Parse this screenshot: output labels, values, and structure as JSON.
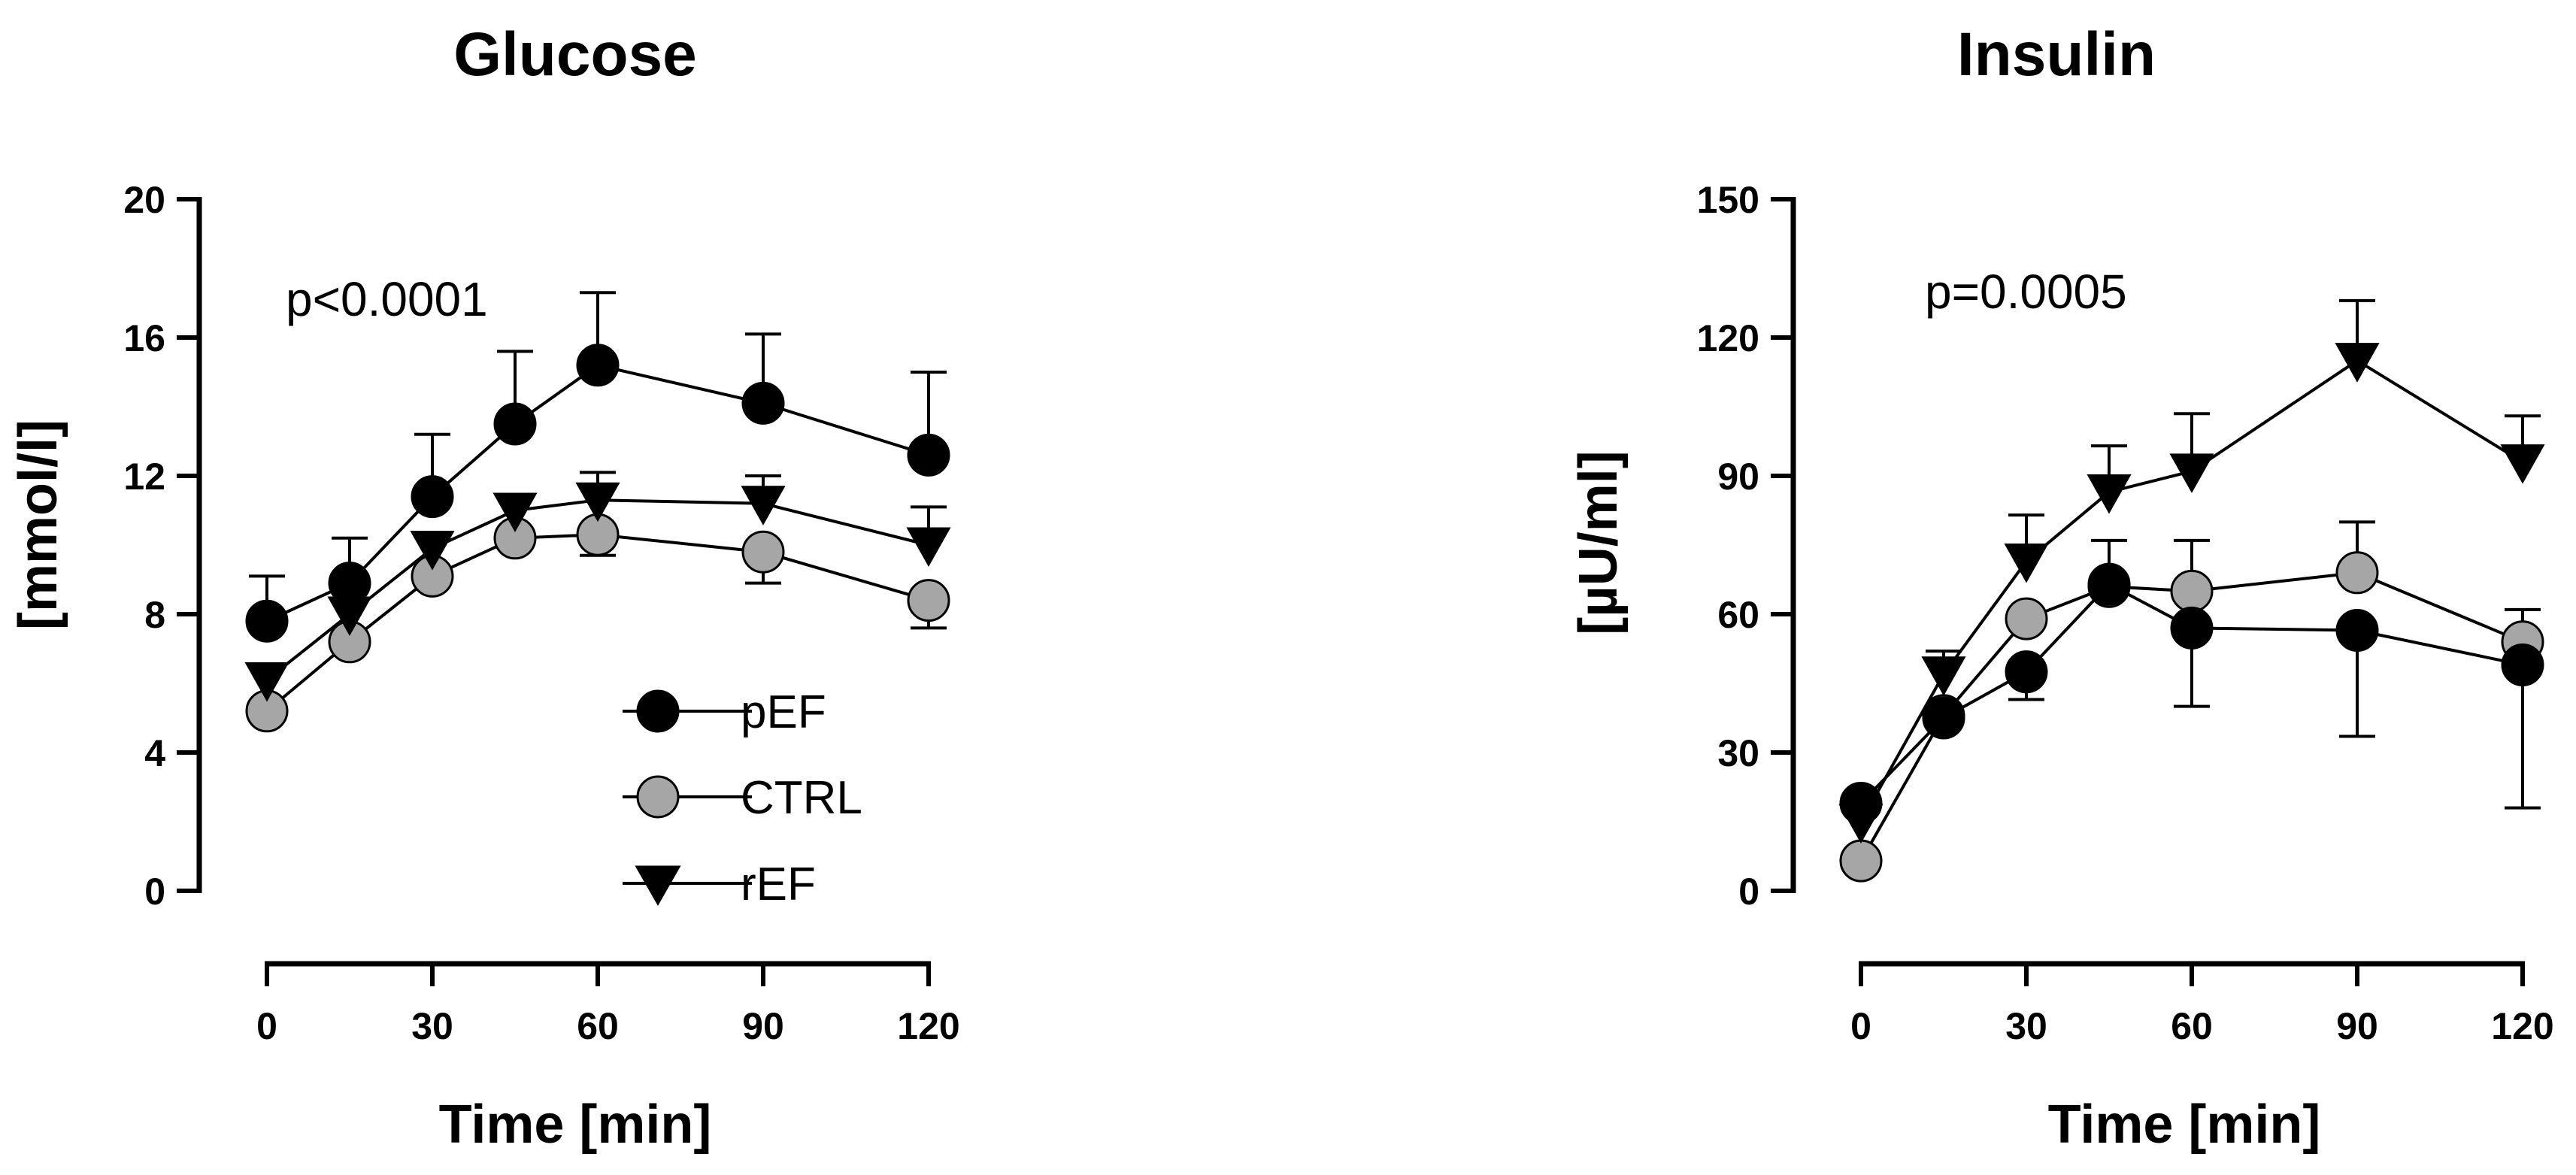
{
  "chart_data": [
    {
      "type": "line",
      "title": "Glucose",
      "xlabel": "Time [min]",
      "ylabel": "[mmol/l]",
      "xticks": [
        0,
        30,
        60,
        90,
        120
      ],
      "yticks": [
        0,
        4,
        8,
        12,
        16,
        20
      ],
      "xlim": [
        0,
        120
      ],
      "ylim": [
        0,
        20
      ],
      "annotation": "p<0.0001",
      "legend": {
        "position": "bottom-right",
        "entries": [
          "pEF",
          "CTRL",
          "rEF"
        ]
      },
      "series": [
        {
          "name": "pEF",
          "marker": "circle",
          "color": "#000000",
          "x": [
            0,
            15,
            30,
            45,
            60,
            90,
            120
          ],
          "y": [
            7.8,
            8.9,
            11.4,
            13.5,
            15.2,
            14.1,
            12.6
          ],
          "err_up": [
            1.3,
            1.3,
            1.8,
            2.1,
            2.1,
            2.0,
            2.4
          ]
        },
        {
          "name": "CTRL",
          "marker": "circle",
          "color": "#a6a6a6",
          "x": [
            0,
            15,
            30,
            45,
            60,
            90,
            120
          ],
          "y": [
            5.2,
            7.2,
            9.1,
            10.2,
            10.3,
            9.8,
            8.4
          ],
          "err_down": [
            0,
            0,
            0,
            0,
            0.6,
            0.9,
            0.8
          ]
        },
        {
          "name": "rEF",
          "marker": "triangle",
          "color": "#000000",
          "x": [
            0,
            15,
            30,
            45,
            60,
            90,
            120
          ],
          "y": [
            6.1,
            8.0,
            9.9,
            11.0,
            11.3,
            11.2,
            10.0
          ],
          "err_up": [
            0,
            0,
            0,
            0,
            0.8,
            0.8,
            1.1
          ]
        }
      ]
    },
    {
      "type": "line",
      "title": "Insulin",
      "xlabel": "Time [min]",
      "ylabel": "[µU/ml]",
      "xticks": [
        0,
        30,
        60,
        90,
        120
      ],
      "yticks": [
        0,
        30,
        60,
        90,
        120,
        150
      ],
      "xlim": [
        0,
        120
      ],
      "ylim": [
        0,
        150
      ],
      "annotation": "p=0.0005",
      "series": [
        {
          "name": "pEF",
          "marker": "circle",
          "color": "#000000",
          "x": [
            0,
            15,
            30,
            45,
            60,
            90,
            120
          ],
          "y": [
            19,
            37.5,
            47.5,
            66.5,
            57,
            56.5,
            49
          ],
          "err_down": [
            0,
            0,
            6,
            0,
            17,
            23,
            31
          ]
        },
        {
          "name": "CTRL",
          "marker": "circle",
          "color": "#a6a6a6",
          "x": [
            0,
            15,
            30,
            45,
            60,
            90,
            120
          ],
          "y": [
            6.5,
            38,
            59,
            66,
            65,
            69,
            54
          ],
          "err_up": [
            0,
            0,
            0,
            10,
            11,
            11,
            7
          ]
        },
        {
          "name": "rEF",
          "marker": "triangle",
          "color": "#000000",
          "x": [
            0,
            15,
            30,
            45,
            60,
            90,
            120
          ],
          "y": [
            15,
            47,
            71.5,
            86.5,
            91,
            115,
            93
          ],
          "err_up": [
            0,
            5,
            10,
            10,
            12.5,
            13,
            10
          ]
        }
      ]
    }
  ]
}
